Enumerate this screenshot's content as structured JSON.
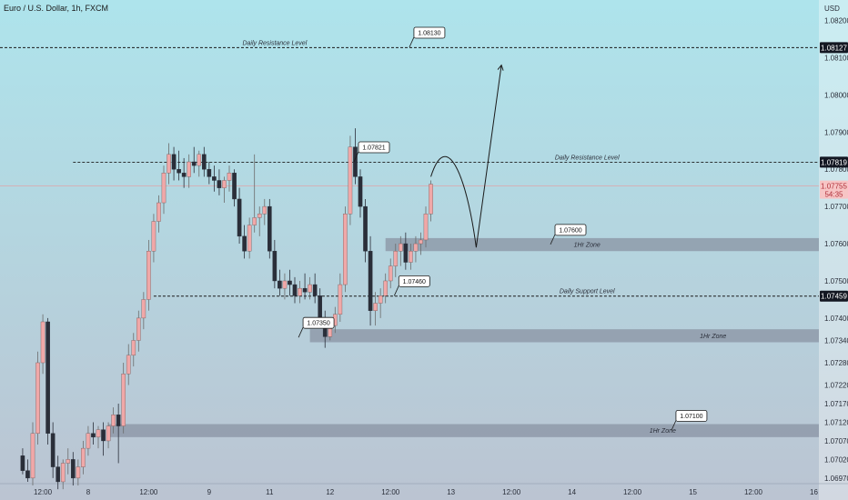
{
  "chart_data": {
    "type": "candlestick",
    "title": "Euro / U.S. Dollar, 1h, FXCM",
    "currency": "USD",
    "ylim": [
      1.06955,
      1.08255
    ],
    "y_ticks": [
      1.0697,
      1.0702,
      1.0707,
      1.0712,
      1.0717,
      1.0722,
      1.0728,
      1.0734,
      1.074,
      1.075,
      1.076,
      1.077,
      1.078,
      1.079,
      1.08,
      1.081,
      1.082
    ],
    "y_tick_labels": [
      "1.06970",
      "1.07020",
      "1.07070",
      "1.07120",
      "1.07170",
      "1.07220",
      "1.07280",
      "1.07340",
      "1.07400",
      "1.07500",
      "1.07600",
      "1.07700",
      "1.07800",
      "1.07900",
      "1.08000",
      "1.08100",
      "1.08200"
    ],
    "x_ticks": [
      {
        "label": "12:00",
        "x": 4
      },
      {
        "label": "8",
        "x": 13
      },
      {
        "label": "12:00",
        "x": 25
      },
      {
        "label": "9",
        "x": 37
      },
      {
        "label": "11",
        "x": 49
      },
      {
        "label": "12",
        "x": 61
      },
      {
        "label": "12:00",
        "x": 73
      },
      {
        "label": "13",
        "x": 85
      },
      {
        "label": "12:00",
        "x": 97
      },
      {
        "label": "14",
        "x": 109
      },
      {
        "label": "12:00",
        "x": 121
      },
      {
        "label": "15",
        "x": 133
      },
      {
        "label": "12:00",
        "x": 145
      },
      {
        "label": "16",
        "x": 157
      }
    ],
    "x_range": [
      -4.5,
      158
    ],
    "candles": [
      [
        0,
        1.0703,
        1.0705,
        1.0698,
        1.0699
      ],
      [
        1,
        1.0699,
        1.0702,
        1.0696,
        1.0697
      ],
      [
        2,
        1.0697,
        1.0712,
        1.0695,
        1.0709
      ],
      [
        3,
        1.0709,
        1.0731,
        1.0706,
        1.0728
      ],
      [
        4,
        1.0728,
        1.0741,
        1.0725,
        1.0739
      ],
      [
        5,
        1.0739,
        1.074,
        1.0706,
        1.0709
      ],
      [
        6,
        1.0709,
        1.0712,
        1.0697,
        1.07
      ],
      [
        7,
        1.07,
        1.0703,
        1.0694,
        1.0696
      ],
      [
        8,
        1.0696,
        1.0702,
        1.0694,
        1.0701
      ],
      [
        9,
        1.0701,
        1.0705,
        1.0698,
        1.0702
      ],
      [
        10,
        1.0702,
        1.0704,
        1.0695,
        1.0697
      ],
      [
        11,
        1.0697,
        1.0702,
        1.0695,
        1.07
      ],
      [
        12,
        1.07,
        1.0707,
        1.0698,
        1.0705
      ],
      [
        13,
        1.0705,
        1.0711,
        1.0703,
        1.0709
      ],
      [
        14,
        1.0709,
        1.0712,
        1.0706,
        1.0708
      ],
      [
        15,
        1.0708,
        1.0711,
        1.0705,
        1.071
      ],
      [
        16,
        1.071,
        1.0712,
        1.0703,
        1.0707
      ],
      [
        17,
        1.0707,
        1.0712,
        1.0705,
        1.0711
      ],
      [
        18,
        1.0711,
        1.0716,
        1.0709,
        1.0714
      ],
      [
        19,
        1.0714,
        1.0717,
        1.0701,
        1.0711
      ],
      [
        20,
        1.0711,
        1.0728,
        1.0709,
        1.0725
      ],
      [
        21,
        1.0725,
        1.0733,
        1.0722,
        1.073
      ],
      [
        22,
        1.073,
        1.0736,
        1.0727,
        1.0734
      ],
      [
        23,
        1.0734,
        1.0742,
        1.0731,
        1.074
      ],
      [
        24,
        1.074,
        1.0747,
        1.0737,
        1.0745
      ],
      [
        25,
        1.0745,
        1.0761,
        1.0742,
        1.0758
      ],
      [
        26,
        1.0758,
        1.0768,
        1.0755,
        1.0766
      ],
      [
        27,
        1.0766,
        1.0773,
        1.0763,
        1.0771
      ],
      [
        28,
        1.0771,
        1.0781,
        1.0768,
        1.0779
      ],
      [
        29,
        1.0779,
        1.0787,
        1.0776,
        1.0784
      ],
      [
        30,
        1.0784,
        1.0786,
        1.0777,
        1.078
      ],
      [
        31,
        1.078,
        1.0785,
        1.0777,
        1.0779
      ],
      [
        32,
        1.0779,
        1.0783,
        1.0775,
        1.0778
      ],
      [
        33,
        1.0778,
        1.0784,
        1.0775,
        1.0782
      ],
      [
        34,
        1.0782,
        1.0786,
        1.0779,
        1.0781
      ],
      [
        35,
        1.0781,
        1.0785,
        1.0778,
        1.0784
      ],
      [
        36,
        1.0784,
        1.0786,
        1.0778,
        1.078
      ],
      [
        37,
        1.078,
        1.0782,
        1.0776,
        1.0778
      ],
      [
        38,
        1.0778,
        1.0781,
        1.0774,
        1.0777
      ],
      [
        39,
        1.0777,
        1.078,
        1.0773,
        1.0775
      ],
      [
        40,
        1.0775,
        1.0778,
        1.0771,
        1.0777
      ],
      [
        41,
        1.0777,
        1.0781,
        1.0774,
        1.0779
      ],
      [
        42,
        1.0779,
        1.078,
        1.077,
        1.0772
      ],
      [
        43,
        1.0772,
        1.0775,
        1.076,
        1.0762
      ],
      [
        44,
        1.0762,
        1.0765,
        1.0756,
        1.0758
      ],
      [
        45,
        1.0758,
        1.0767,
        1.0756,
        1.0765
      ],
      [
        46,
        1.0765,
        1.0784,
        1.0763,
        1.0767
      ],
      [
        47,
        1.0767,
        1.077,
        1.0762,
        1.0768
      ],
      [
        48,
        1.0768,
        1.0772,
        1.0765,
        1.077
      ],
      [
        49,
        1.077,
        1.0772,
        1.0756,
        1.0758
      ],
      [
        50,
        1.0758,
        1.0761,
        1.0748,
        1.075
      ],
      [
        51,
        1.075,
        1.0753,
        1.0746,
        1.0748
      ],
      [
        52,
        1.0748,
        1.0752,
        1.0745,
        1.075
      ],
      [
        53,
        1.075,
        1.0753,
        1.0746,
        1.0749
      ],
      [
        54,
        1.0749,
        1.0751,
        1.0744,
        1.0746
      ],
      [
        55,
        1.0746,
        1.075,
        1.0744,
        1.0748
      ],
      [
        56,
        1.0748,
        1.0752,
        1.0745,
        1.0747
      ],
      [
        57,
        1.0747,
        1.0751,
        1.0745,
        1.0749
      ],
      [
        58,
        1.0749,
        1.0752,
        1.0744,
        1.0746
      ],
      [
        59,
        1.0746,
        1.0748,
        1.0738,
        1.074
      ],
      [
        60,
        1.074,
        1.0742,
        1.0732,
        1.0735
      ],
      [
        61,
        1.0735,
        1.074,
        1.0734,
        1.0738
      ],
      [
        62,
        1.0738,
        1.0743,
        1.0736,
        1.0741
      ],
      [
        63,
        1.0741,
        1.0752,
        1.0739,
        1.0749
      ],
      [
        64,
        1.0749,
        1.077,
        1.0747,
        1.0768
      ],
      [
        65,
        1.0768,
        1.0789,
        1.0765,
        1.0786
      ],
      [
        66,
        1.0786,
        1.0791,
        1.0776,
        1.0778
      ],
      [
        67,
        1.0778,
        1.078,
        1.0767,
        1.077
      ],
      [
        68,
        1.077,
        1.0772,
        1.0755,
        1.0758
      ],
      [
        69,
        1.0758,
        1.0762,
        1.0738,
        1.0742
      ],
      [
        70,
        1.0742,
        1.0747,
        1.0738,
        1.0744
      ],
      [
        71,
        1.0744,
        1.0748,
        1.074,
        1.0746
      ],
      [
        72,
        1.0746,
        1.0752,
        1.0744,
        1.075
      ],
      [
        73,
        1.075,
        1.0756,
        1.0748,
        1.0754
      ],
      [
        74,
        1.0754,
        1.076,
        1.0751,
        1.0758
      ],
      [
        75,
        1.0758,
        1.0762,
        1.0754,
        1.076
      ],
      [
        76,
        1.076,
        1.0763,
        1.0753,
        1.0755
      ],
      [
        77,
        1.0755,
        1.076,
        1.0753,
        1.0758
      ],
      [
        78,
        1.0758,
        1.0762,
        1.0755,
        1.076
      ],
      [
        79,
        1.076,
        1.0763,
        1.0757,
        1.0761
      ],
      [
        80,
        1.0761,
        1.077,
        1.0759,
        1.0768
      ],
      [
        81,
        1.0768,
        1.0777,
        1.0766,
        1.0776
      ]
    ],
    "bull_color": "#f0a8a8",
    "bear_color": "#2a2e39",
    "horizontal_lines": [
      {
        "price": 1.08127,
        "label": "Daily Resistance Level",
        "x_start": -4.5,
        "label_x": 50
      },
      {
        "price": 1.07819,
        "label": "Daily Resistance Level",
        "x_start": 10,
        "label_x": 112
      },
      {
        "price": 1.07459,
        "label": "Daily Support Level",
        "x_start": 26,
        "label_x": 112
      }
    ],
    "zones": [
      {
        "top": 1.07615,
        "bottom": 1.0758,
        "label": "1Hr Zone",
        "x_start": 72,
        "label_x": 112
      },
      {
        "top": 1.0737,
        "bottom": 1.07335,
        "label": "1Hr Zone",
        "x_start": 57,
        "label_x": 137
      },
      {
        "top": 1.07115,
        "bottom": 1.0708,
        "label": "1Hr Zone",
        "x_start": 17,
        "label_x": 127
      }
    ],
    "callouts": [
      {
        "text": "1.08130",
        "price": 1.08128,
        "x": 78
      },
      {
        "text": "1.07821",
        "price": 1.0782,
        "x": 67
      },
      {
        "text": "1.07600",
        "price": 1.07598,
        "x": 106
      },
      {
        "text": "1.07460",
        "price": 1.0746,
        "x": 75
      },
      {
        "text": "1.07350",
        "price": 1.07348,
        "x": 56
      },
      {
        "text": "1.07100",
        "price": 1.07098,
        "x": 130
      }
    ],
    "price_tags": [
      {
        "text": "1.08127",
        "price": 1.08127,
        "color": "#131722"
      },
      {
        "text": "1.07819",
        "price": 1.07819,
        "color": "#131722"
      },
      {
        "text": "1.07755",
        "price": 1.07755,
        "color": "#f7c5c5",
        "sub": "54:35"
      },
      {
        "text": "1.07459",
        "price": 1.07459,
        "color": "#131722"
      }
    ],
    "current_price": 1.07755,
    "projection": [
      [
        81,
        1.0778
      ],
      [
        84,
        1.0785
      ],
      [
        88,
        1.0772
      ],
      [
        90,
        1.0759
      ],
      [
        95,
        1.0808
      ]
    ]
  }
}
